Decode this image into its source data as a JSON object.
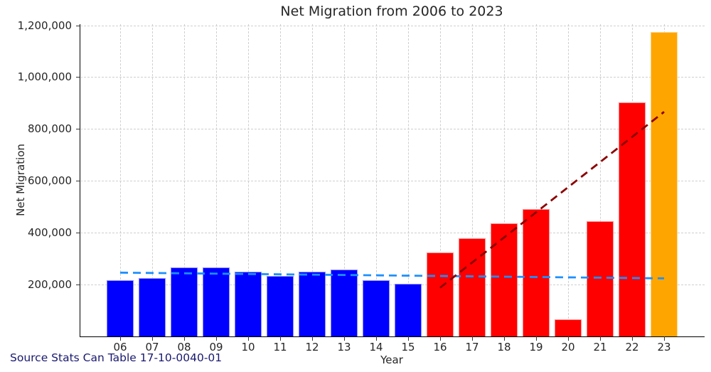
{
  "source_note": "Source Stats Can Table 17-10-0040-01",
  "source_color": "#191970",
  "chart_data": {
    "type": "bar",
    "title": "Net Migration from 2006 to 2023",
    "xlabel": "Year",
    "ylabel": "Net Migration",
    "categories": [
      "06",
      "07",
      "08",
      "09",
      "10",
      "11",
      "12",
      "13",
      "14",
      "15",
      "16",
      "17",
      "18",
      "19",
      "20",
      "21",
      "22",
      "23"
    ],
    "values": [
      217000,
      226000,
      267000,
      267000,
      250000,
      234000,
      250000,
      258000,
      218000,
      202000,
      325000,
      378000,
      437000,
      492000,
      65000,
      445000,
      903000,
      1175000
    ],
    "bar_colors": [
      "#0000FF",
      "#0000FF",
      "#0000FF",
      "#0000FF",
      "#0000FF",
      "#0000FF",
      "#0000FF",
      "#0000FF",
      "#0000FF",
      "#0000FF",
      "#FF0000",
      "#FF0000",
      "#FF0000",
      "#FF0000",
      "#FF0000",
      "#FF0000",
      "#FF0000",
      "#FFA500"
    ],
    "ylim": [
      0,
      1200000
    ],
    "yticks": [
      200000,
      400000,
      600000,
      800000,
      1000000,
      1200000
    ],
    "ytick_labels": [
      "200,000",
      "400,000",
      "600,000",
      "800,000",
      "1,000,000",
      "1,200,000"
    ],
    "grid": true,
    "legend": "none",
    "trend_lines": [
      {
        "name": "blue-bars-trend",
        "color": "#1E90FF",
        "style": "dashed",
        "x_start": "06",
        "y_start": 246000,
        "x_end": "23",
        "y_end": 224000
      },
      {
        "name": "red-bars-trend",
        "color": "#8B0000",
        "style": "dashed",
        "x_start": "16",
        "y_start": 188000,
        "x_end": "23",
        "y_end": 866000
      }
    ],
    "colors": {
      "blue_bars": "#0000FF",
      "red_bars": "#FF0000",
      "orange_bar": "#FFA500",
      "gridline": "#cfcfcf",
      "spine": "#000000"
    }
  }
}
